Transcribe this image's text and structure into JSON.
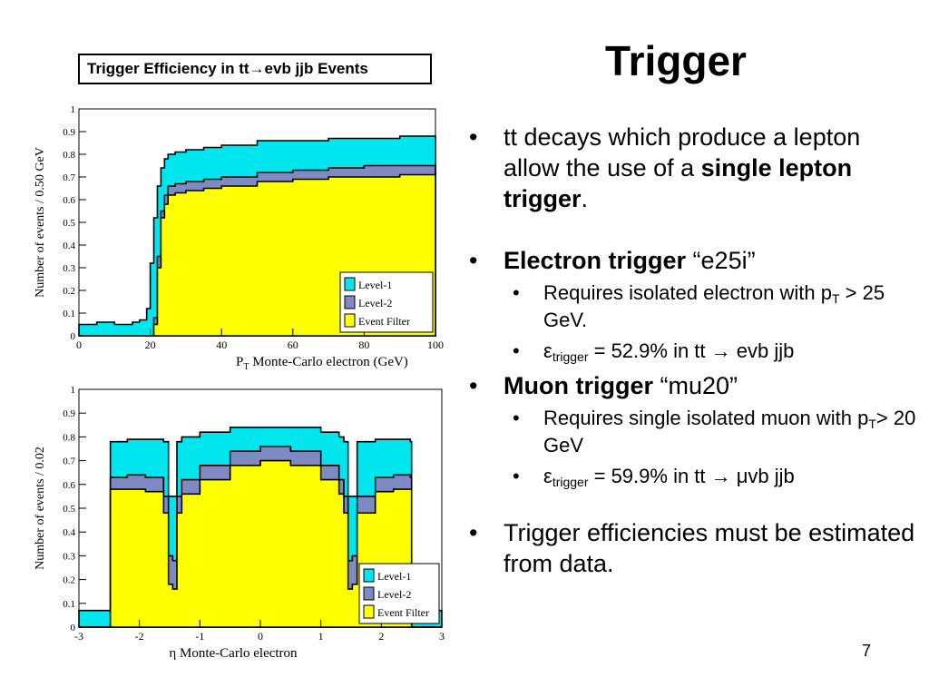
{
  "slide": {
    "title": "Trigger",
    "caption": "Trigger Efficiency in tt→evb jjb Events",
    "page_number": "7"
  },
  "bullets": {
    "b1": {
      "pre": "tt decays which produce a lepton allow the use of a ",
      "bold": "single lepton trigger",
      "post": "."
    },
    "b2": {
      "bold": "Electron trigger",
      "post": " “e25i”"
    },
    "b2_sub1": {
      "pre": "Requires isolated electron with p",
      "sub": "T",
      "post": " > 25 GeV."
    },
    "b2_sub2": {
      "pre": "ε",
      "sub": "trigger",
      "post": " = 52.9% in tt → evb jjb"
    },
    "b3": {
      "bold": "Muon trigger",
      "post": " “mu20”"
    },
    "b3_sub1": {
      "pre": "Requires single isolated muon with p",
      "sub": "T",
      "post": "> 20 GeV"
    },
    "b3_sub2": {
      "pre": "ε",
      "sub": "trigger",
      "post": " = 59.9% in tt → μvb jjb"
    },
    "b4": {
      "text": "Trigger efficiencies must be estimated from data."
    },
    "marker": "•",
    "sub_marker": "•"
  },
  "chart_data": [
    {
      "type": "area",
      "xlabel": "P",
      "xlabel_sub": "T",
      "xlabel_rest": " Monte-Carlo electron (GeV)",
      "ylabel": "Number of events / 0.50 GeV",
      "xlim": [
        0,
        100
      ],
      "ylim": [
        0,
        1
      ],
      "x_ticks": [
        "0",
        "20",
        "40",
        "60",
        "80",
        "100"
      ],
      "y_ticks": [
        "0",
        "0.1",
        "0.2",
        "0.3",
        "0.4",
        "0.5",
        "0.6",
        "0.7",
        "0.8",
        "0.9",
        "1"
      ],
      "legend_position": "bottom-right",
      "x": [
        0,
        5,
        10,
        15,
        17,
        19,
        20,
        21,
        22,
        23,
        24,
        25,
        27,
        30,
        35,
        40,
        50,
        60,
        70,
        80,
        90,
        100
      ],
      "series": [
        {
          "name": "Level-1",
          "color": "#00e5ee",
          "values": [
            0.05,
            0.06,
            0.05,
            0.06,
            0.07,
            0.12,
            0.32,
            0.52,
            0.66,
            0.74,
            0.78,
            0.8,
            0.81,
            0.82,
            0.83,
            0.84,
            0.86,
            0.86,
            0.87,
            0.87,
            0.88,
            0.88
          ]
        },
        {
          "name": "Level-2",
          "color": "#7f8ac2",
          "values": [
            0,
            0,
            0,
            0,
            0,
            0,
            0,
            0.08,
            0.35,
            0.55,
            0.62,
            0.66,
            0.67,
            0.68,
            0.69,
            0.7,
            0.72,
            0.73,
            0.74,
            0.75,
            0.75,
            0.76
          ]
        },
        {
          "name": "Event Filter",
          "color": "#ffff00",
          "values": [
            0,
            0,
            0,
            0,
            0,
            0,
            0,
            0.05,
            0.3,
            0.52,
            0.58,
            0.62,
            0.63,
            0.64,
            0.65,
            0.66,
            0.68,
            0.69,
            0.7,
            0.7,
            0.71,
            0.72
          ]
        }
      ]
    },
    {
      "type": "area",
      "xlabel": "η Monte-Carlo electron",
      "ylabel": "Number of events / 0.02",
      "xlim": [
        -3,
        3
      ],
      "ylim": [
        0,
        1
      ],
      "x_ticks": [
        "-3",
        "-2",
        "-1",
        "0",
        "1",
        "2",
        "3"
      ],
      "y_ticks": [
        "0",
        "0.1",
        "0.2",
        "0.3",
        "0.4",
        "0.5",
        "0.6",
        "0.7",
        "0.8",
        "0.9",
        "1"
      ],
      "legend_position": "bottom-right",
      "x": [
        -3,
        -2.5,
        -2.48,
        -2.2,
        -1.9,
        -1.6,
        -1.52,
        -1.45,
        -1.38,
        -1.3,
        -1.0,
        -0.5,
        0,
        0.5,
        1.0,
        1.3,
        1.38,
        1.45,
        1.52,
        1.6,
        1.9,
        2.2,
        2.48,
        2.5,
        3
      ],
      "series": [
        {
          "name": "Level-1",
          "color": "#00e5ee",
          "values": [
            0.07,
            0.07,
            0.78,
            0.79,
            0.79,
            0.78,
            0.55,
            0.55,
            0.78,
            0.8,
            0.82,
            0.84,
            0.84,
            0.84,
            0.82,
            0.8,
            0.78,
            0.55,
            0.55,
            0.78,
            0.79,
            0.79,
            0.78,
            0.07,
            0.07
          ]
        },
        {
          "name": "Level-2",
          "color": "#7f8ac2",
          "values": [
            0,
            0,
            0.63,
            0.64,
            0.63,
            0.55,
            0.3,
            0.28,
            0.55,
            0.62,
            0.68,
            0.74,
            0.76,
            0.74,
            0.68,
            0.62,
            0.55,
            0.28,
            0.3,
            0.55,
            0.63,
            0.64,
            0.63,
            0,
            0
          ]
        },
        {
          "name": "Event Filter",
          "color": "#ffff00",
          "values": [
            0,
            0,
            0.58,
            0.58,
            0.57,
            0.48,
            0.18,
            0.16,
            0.48,
            0.56,
            0.62,
            0.68,
            0.7,
            0.68,
            0.62,
            0.56,
            0.48,
            0.16,
            0.18,
            0.48,
            0.57,
            0.58,
            0.58,
            0,
            0
          ]
        }
      ]
    }
  ]
}
